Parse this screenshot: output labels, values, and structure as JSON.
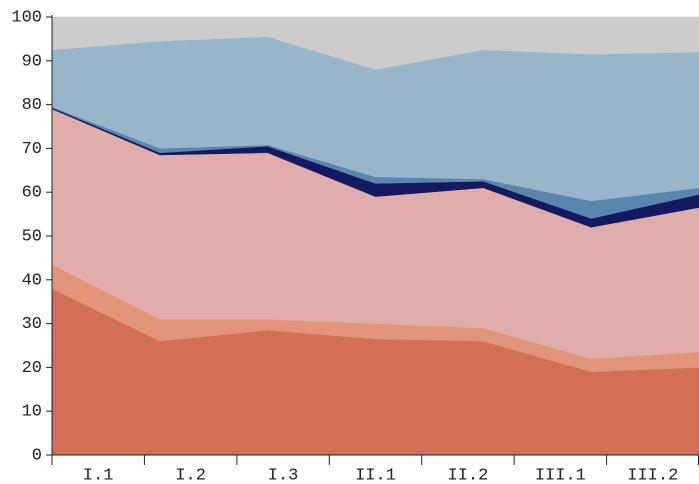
{
  "chart_data": {
    "type": "stacked_area",
    "categories": [
      "I.1",
      "I.2",
      "I.3",
      "II.1",
      "II.2",
      "III.1",
      "III.2"
    ],
    "series": [
      {
        "color": "#d36f56",
        "values": [
          38,
          26,
          28.5,
          26.5,
          26,
          19,
          20
        ]
      },
      {
        "color": "#e3957a",
        "values": [
          5.5,
          5,
          2.5,
          3.5,
          3,
          3,
          3.5
        ]
      },
      {
        "color": "#e1adac",
        "values": [
          35.5,
          37.5,
          38,
          29,
          32,
          30,
          33
        ]
      },
      {
        "color": "#131a5f",
        "values": [
          0.3,
          0.5,
          1.5,
          3,
          1.5,
          2,
          3
        ]
      },
      {
        "color": "#5a86ad",
        "values": [
          0.2,
          1,
          0.3,
          1.5,
          0.5,
          4,
          1.5
        ]
      },
      {
        "color": "#98b5ca",
        "values": [
          13,
          24.5,
          24.7,
          24.5,
          29.5,
          33.5,
          31
        ]
      },
      {
        "color": "#cccccc",
        "values": [
          7.5,
          5.5,
          4.5,
          12,
          7.5,
          8.5,
          8
        ]
      }
    ],
    "ylim": [
      0,
      100
    ],
    "yticks": [
      0,
      10,
      20,
      30,
      40,
      50,
      60,
      70,
      80,
      90,
      100
    ]
  }
}
